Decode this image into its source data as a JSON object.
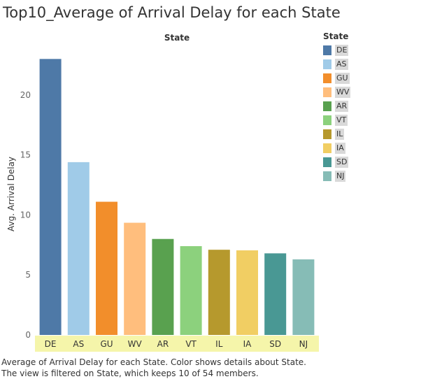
{
  "title": "Top10_Average of Arrival Delay for each State",
  "caption": "Average of Arrival Delay for each State.  Color shows details about State. The view is filtered on State, which keeps 10 of 54 members.",
  "legend": {
    "title": "State",
    "items": [
      {
        "label": "DE",
        "color": "#4e79a7"
      },
      {
        "label": "AS",
        "color": "#a0cbe8"
      },
      {
        "label": "GU",
        "color": "#f28e2b"
      },
      {
        "label": "WV",
        "color": "#ffbe7d"
      },
      {
        "label": "AR",
        "color": "#59a14f"
      },
      {
        "label": "VT",
        "color": "#8cd17d"
      },
      {
        "label": "IL",
        "color": "#b6992d"
      },
      {
        "label": "IA",
        "color": "#f1ce63"
      },
      {
        "label": "SD",
        "color": "#499894"
      },
      {
        "label": "NJ",
        "color": "#86bcb6"
      }
    ]
  },
  "chart_data": {
    "type": "bar",
    "title": "Top10_Average of Arrival Delay for each State",
    "column_header": "State",
    "xlabel": "",
    "ylabel": "Avg. Arrival Delay",
    "categories": [
      "DE",
      "AS",
      "GU",
      "WV",
      "AR",
      "VT",
      "IL",
      "IA",
      "SD",
      "NJ"
    ],
    "values": [
      23.0,
      14.4,
      11.1,
      9.35,
      8.0,
      7.4,
      7.1,
      7.05,
      6.8,
      6.3
    ],
    "colors": [
      "#4e79a7",
      "#a0cbe8",
      "#f28e2b",
      "#ffbe7d",
      "#59a14f",
      "#8cd17d",
      "#b6992d",
      "#f1ce63",
      "#499894",
      "#86bcb6"
    ],
    "ylim": [
      0,
      25
    ],
    "yticks": [
      0,
      5,
      10,
      15,
      20
    ],
    "grid": false,
    "legend_position": "right",
    "category_band_color": "#f5f5aa"
  }
}
